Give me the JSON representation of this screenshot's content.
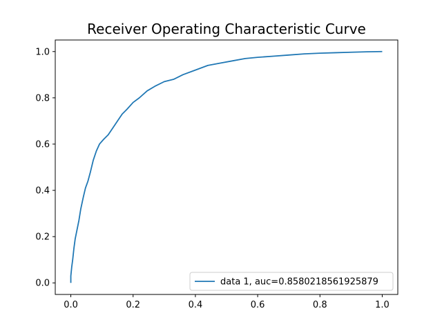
{
  "chart_data": {
    "type": "line",
    "title": "Receiver Operating Characteristic Curve",
    "xlabel": "",
    "ylabel": "",
    "xlim": [
      -0.05,
      1.05
    ],
    "ylim": [
      -0.05,
      1.05
    ],
    "x_ticks": [
      "0.0",
      "0.2",
      "0.4",
      "0.6",
      "0.8",
      "1.0"
    ],
    "y_ticks": [
      "0.0",
      "0.2",
      "0.4",
      "0.6",
      "0.8",
      "1.0"
    ],
    "grid": false,
    "legend_position": "lower-right",
    "series": [
      {
        "name": "data 1, auc=0.8580218561925879",
        "color": "#1f77b4",
        "x": [
          0.0,
          0.0,
          0.003,
          0.006,
          0.01,
          0.014,
          0.02,
          0.026,
          0.032,
          0.04,
          0.047,
          0.055,
          0.063,
          0.072,
          0.082,
          0.092,
          0.105,
          0.12,
          0.135,
          0.15,
          0.165,
          0.18,
          0.2,
          0.22,
          0.245,
          0.27,
          0.3,
          0.33,
          0.36,
          0.4,
          0.44,
          0.48,
          0.52,
          0.56,
          0.6,
          0.65,
          0.7,
          0.75,
          0.8,
          0.85,
          0.9,
          0.95,
          1.0
        ],
        "y": [
          0.0,
          0.03,
          0.07,
          0.1,
          0.15,
          0.19,
          0.23,
          0.27,
          0.32,
          0.37,
          0.41,
          0.44,
          0.48,
          0.53,
          0.57,
          0.6,
          0.62,
          0.64,
          0.67,
          0.7,
          0.73,
          0.75,
          0.78,
          0.8,
          0.83,
          0.85,
          0.87,
          0.88,
          0.9,
          0.92,
          0.94,
          0.95,
          0.96,
          0.97,
          0.975,
          0.98,
          0.985,
          0.99,
          0.993,
          0.995,
          0.997,
          0.999,
          1.0
        ]
      }
    ]
  }
}
